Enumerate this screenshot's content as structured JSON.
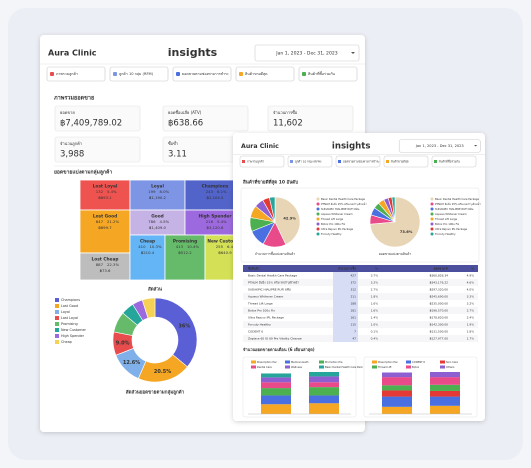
{
  "back": {
    "brand": "Aura Clinic",
    "logo": "insights",
    "date": "Jan 1, 2023 - Dec 31, 2023",
    "tabs": [
      "ภาพรวมลูกค้า",
      "ลูกค้า 10 กลุ่ม (RFM)",
      "ยอดขายตามช่องทางการชำระ",
      "สินค้าขายดีสุด",
      "สินค้าที่ซื้อร่วมกัน"
    ],
    "section": "ภาพรวมยอดขาย",
    "kpis": [
      {
        "label": "ยอดขาย",
        "value": "฿7,409,789.02"
      },
      {
        "label": "ยอดซื้อเฉลี่ย (ATV)",
        "value": "฿638.66"
      },
      {
        "label": "จำนวนการซื้อ",
        "value": "11,602"
      },
      {
        "label": "จำนวนลูกค้า",
        "value": "3,988"
      },
      {
        "label": "ซื้อซ้ำ",
        "value": "3.11"
      }
    ],
    "treemap_title": "ยอดขายแบ่งตามกลุ่มลูกค้า",
    "treemap": [
      {
        "label": "Lost Loyal",
        "count": 132,
        "share": "5.4%",
        "amount": "฿893.1"
      },
      {
        "label": "Loyal",
        "count": 199,
        "share": "8.0%",
        "amount": "฿1,190.2"
      },
      {
        "label": "Champions",
        "count": 243,
        "share": "6.1%",
        "amount": "฿2,104.5"
      },
      {
        "label": "Lost Good",
        "count": 847,
        "share": "21.2%",
        "amount": "฿899.7"
      },
      {
        "label": "Good",
        "count": 786,
        "share": "4.5%",
        "amount": "฿1,409.0"
      },
      {
        "label": "High Spender",
        "count": 216,
        "share": "5.4%",
        "amount": "฿3,120.8"
      },
      {
        "label": "Lost Cheap",
        "count": 887,
        "share": "22.3%",
        "amount": "฿73.6"
      },
      {
        "label": "Cheap",
        "count": 410,
        "share": "10.3%",
        "amount": "฿210.4"
      },
      {
        "label": "Promising",
        "count": 413,
        "share": "10.4%",
        "amount": "฿512.2"
      },
      {
        "label": "New Customer",
        "count": 255,
        "share": "6.4%",
        "amount": "฿640.9"
      }
    ],
    "donut": {
      "type": "pie",
      "title": "สัดส่วน",
      "caption": "สัดส่วนยอดขายตามกลุ่มลูกค้า",
      "names": [
        "Champions",
        "Lost Good",
        "Loyal",
        "Lost Loyal",
        "Promising",
        "New Customer",
        "High Spender",
        "Cheap"
      ],
      "values": [
        36,
        20.5,
        12.6,
        9,
        8,
        5,
        4,
        4.9
      ],
      "value_labels": [
        "36%",
        "20.5%",
        "12.6%",
        "9.0%",
        null,
        null,
        null,
        null
      ],
      "colors": [
        "#5b5fd6",
        "#f5a623",
        "#7fb0ea",
        "#e84c4c",
        "#66bb6a",
        "#26a69a",
        "#9c6ade",
        "#f7d154"
      ]
    }
  },
  "front": {
    "brand": "Aura Clinic",
    "logo": "insights",
    "date": "Jan 1, 2023 - Dec 31, 2023",
    "section": "สินค้าที่ขายดีที่สุด 10 อันดับ",
    "pies": [
      {
        "type": "pie",
        "caption": "จำนวนการซื้อแบ่งตามสินค้า",
        "values": [
          42.9,
          15,
          11,
          9,
          8,
          6,
          4.5,
          3.6
        ],
        "value_labels": [
          "42.9%",
          null,
          null,
          null,
          null,
          null,
          null,
          null
        ]
      },
      {
        "type": "pie",
        "caption": "ยอดขายแบ่งตามสินค้า",
        "values": [
          73.6,
          6,
          5,
          4,
          4,
          3,
          2.4,
          2
        ],
        "value_labels": [
          "73.6%",
          null,
          null,
          null,
          null,
          null,
          null,
          null
        ]
      }
    ],
    "pie_colors": [
      "#e8d5b5",
      "#e84a8a",
      "#4a6fe0",
      "#4caf50",
      "#f5a623",
      "#8e5fd0",
      "#e53935",
      "#26a69a"
    ],
    "table": {
      "header": [
        "ชื่อสินค้า",
        "จำนวนการซื้อ",
        "%",
        "ยอดขาย ▼",
        "%"
      ],
      "rows": [
        [
          "Basic Dental Health Care Package",
          "427",
          "3.7%",
          "฿360,826.34",
          "4.9%"
        ],
        [
          "PTNLM ฮัมมิ่ง 25% ครีมเจลบำรุงผิวหน้า",
          "372",
          "3.2%",
          "฿343,176.22",
          "4.6%"
        ],
        [
          "SUDAKPIC HIALIPRE RUFI 6พัน",
          "312",
          "2.7%",
          "฿297,320.00",
          "4.0%"
        ],
        [
          "Aqueus Whitener Cream",
          "211",
          "1.8%",
          "฿245,690.00",
          "3.3%"
        ],
        [
          "Thread Lift Large",
          "188",
          "1.6%",
          "฿235,000.00",
          "3.2%"
        ],
        [
          "Botox Pro 100u Fix",
          "181",
          "1.6%",
          "฿196,570.00",
          "2.7%"
        ],
        [
          "Ultra Rejuvo IPL Package",
          "161",
          "1.4%",
          "฿178,820.00",
          "2.4%"
        ],
        [
          "Forcuty Healthy",
          "115",
          "1.0%",
          "฿142,300.00",
          "1.9%"
        ],
        [
          "CODENT 6",
          "7",
          "0.1%",
          "฿131,500.00",
          "1.8%"
        ],
        [
          "Zaplace 60 IO 69 Pre Vitality Cleanse",
          "47",
          "0.4%",
          "฿127,977.00",
          "1.7%"
        ]
      ]
    },
    "bars_title": "จำนวนยอดขายตามเดือน (6 เดือนล่าสุด)",
    "bars": [
      {
        "type": "bar",
        "categories": [
          null,
          null
        ],
        "series": [
          {
            "name": "Prescription Pac",
            "color": "#f5a623",
            "values": [
              20,
              22
            ]
          },
          {
            "name": "Medical Aesth",
            "color": "#4a6fe0",
            "values": [
              18,
              16
            ]
          },
          {
            "name": "Promotion Pre",
            "color": "#4caf50",
            "values": [
              15,
              17
            ]
          },
          {
            "name": "Dental Care",
            "color": "#e84a8a",
            "values": [
              12,
              10
            ]
          },
          {
            "name": "Wellness",
            "color": "#8e5fd0",
            "values": [
              10,
              12
            ]
          },
          {
            "name": "Basic Dental Health Care Pack",
            "color": "#26a69a",
            "values": [
              8,
              9
            ]
          }
        ]
      },
      {
        "type": "bar",
        "categories": [
          null,
          null
        ],
        "series": [
          {
            "name": "Prescription Pac",
            "color": "#f5a623",
            "values": [
              14,
              16
            ]
          },
          {
            "name": "CODENT 6",
            "color": "#4a6fe0",
            "values": [
              20,
              18
            ]
          },
          {
            "name": "Skin Care",
            "color": "#e53935",
            "values": [
              12,
              11
            ]
          },
          {
            "name": "Thread Lift",
            "color": "#4caf50",
            "values": [
              10,
              12
            ]
          },
          {
            "name": "Botox",
            "color": "#e84a8a",
            "values": [
              16,
              15
            ]
          },
          {
            "name": "Others",
            "color": "#8e5fd0",
            "values": [
              9,
              10
            ]
          }
        ]
      }
    ]
  }
}
